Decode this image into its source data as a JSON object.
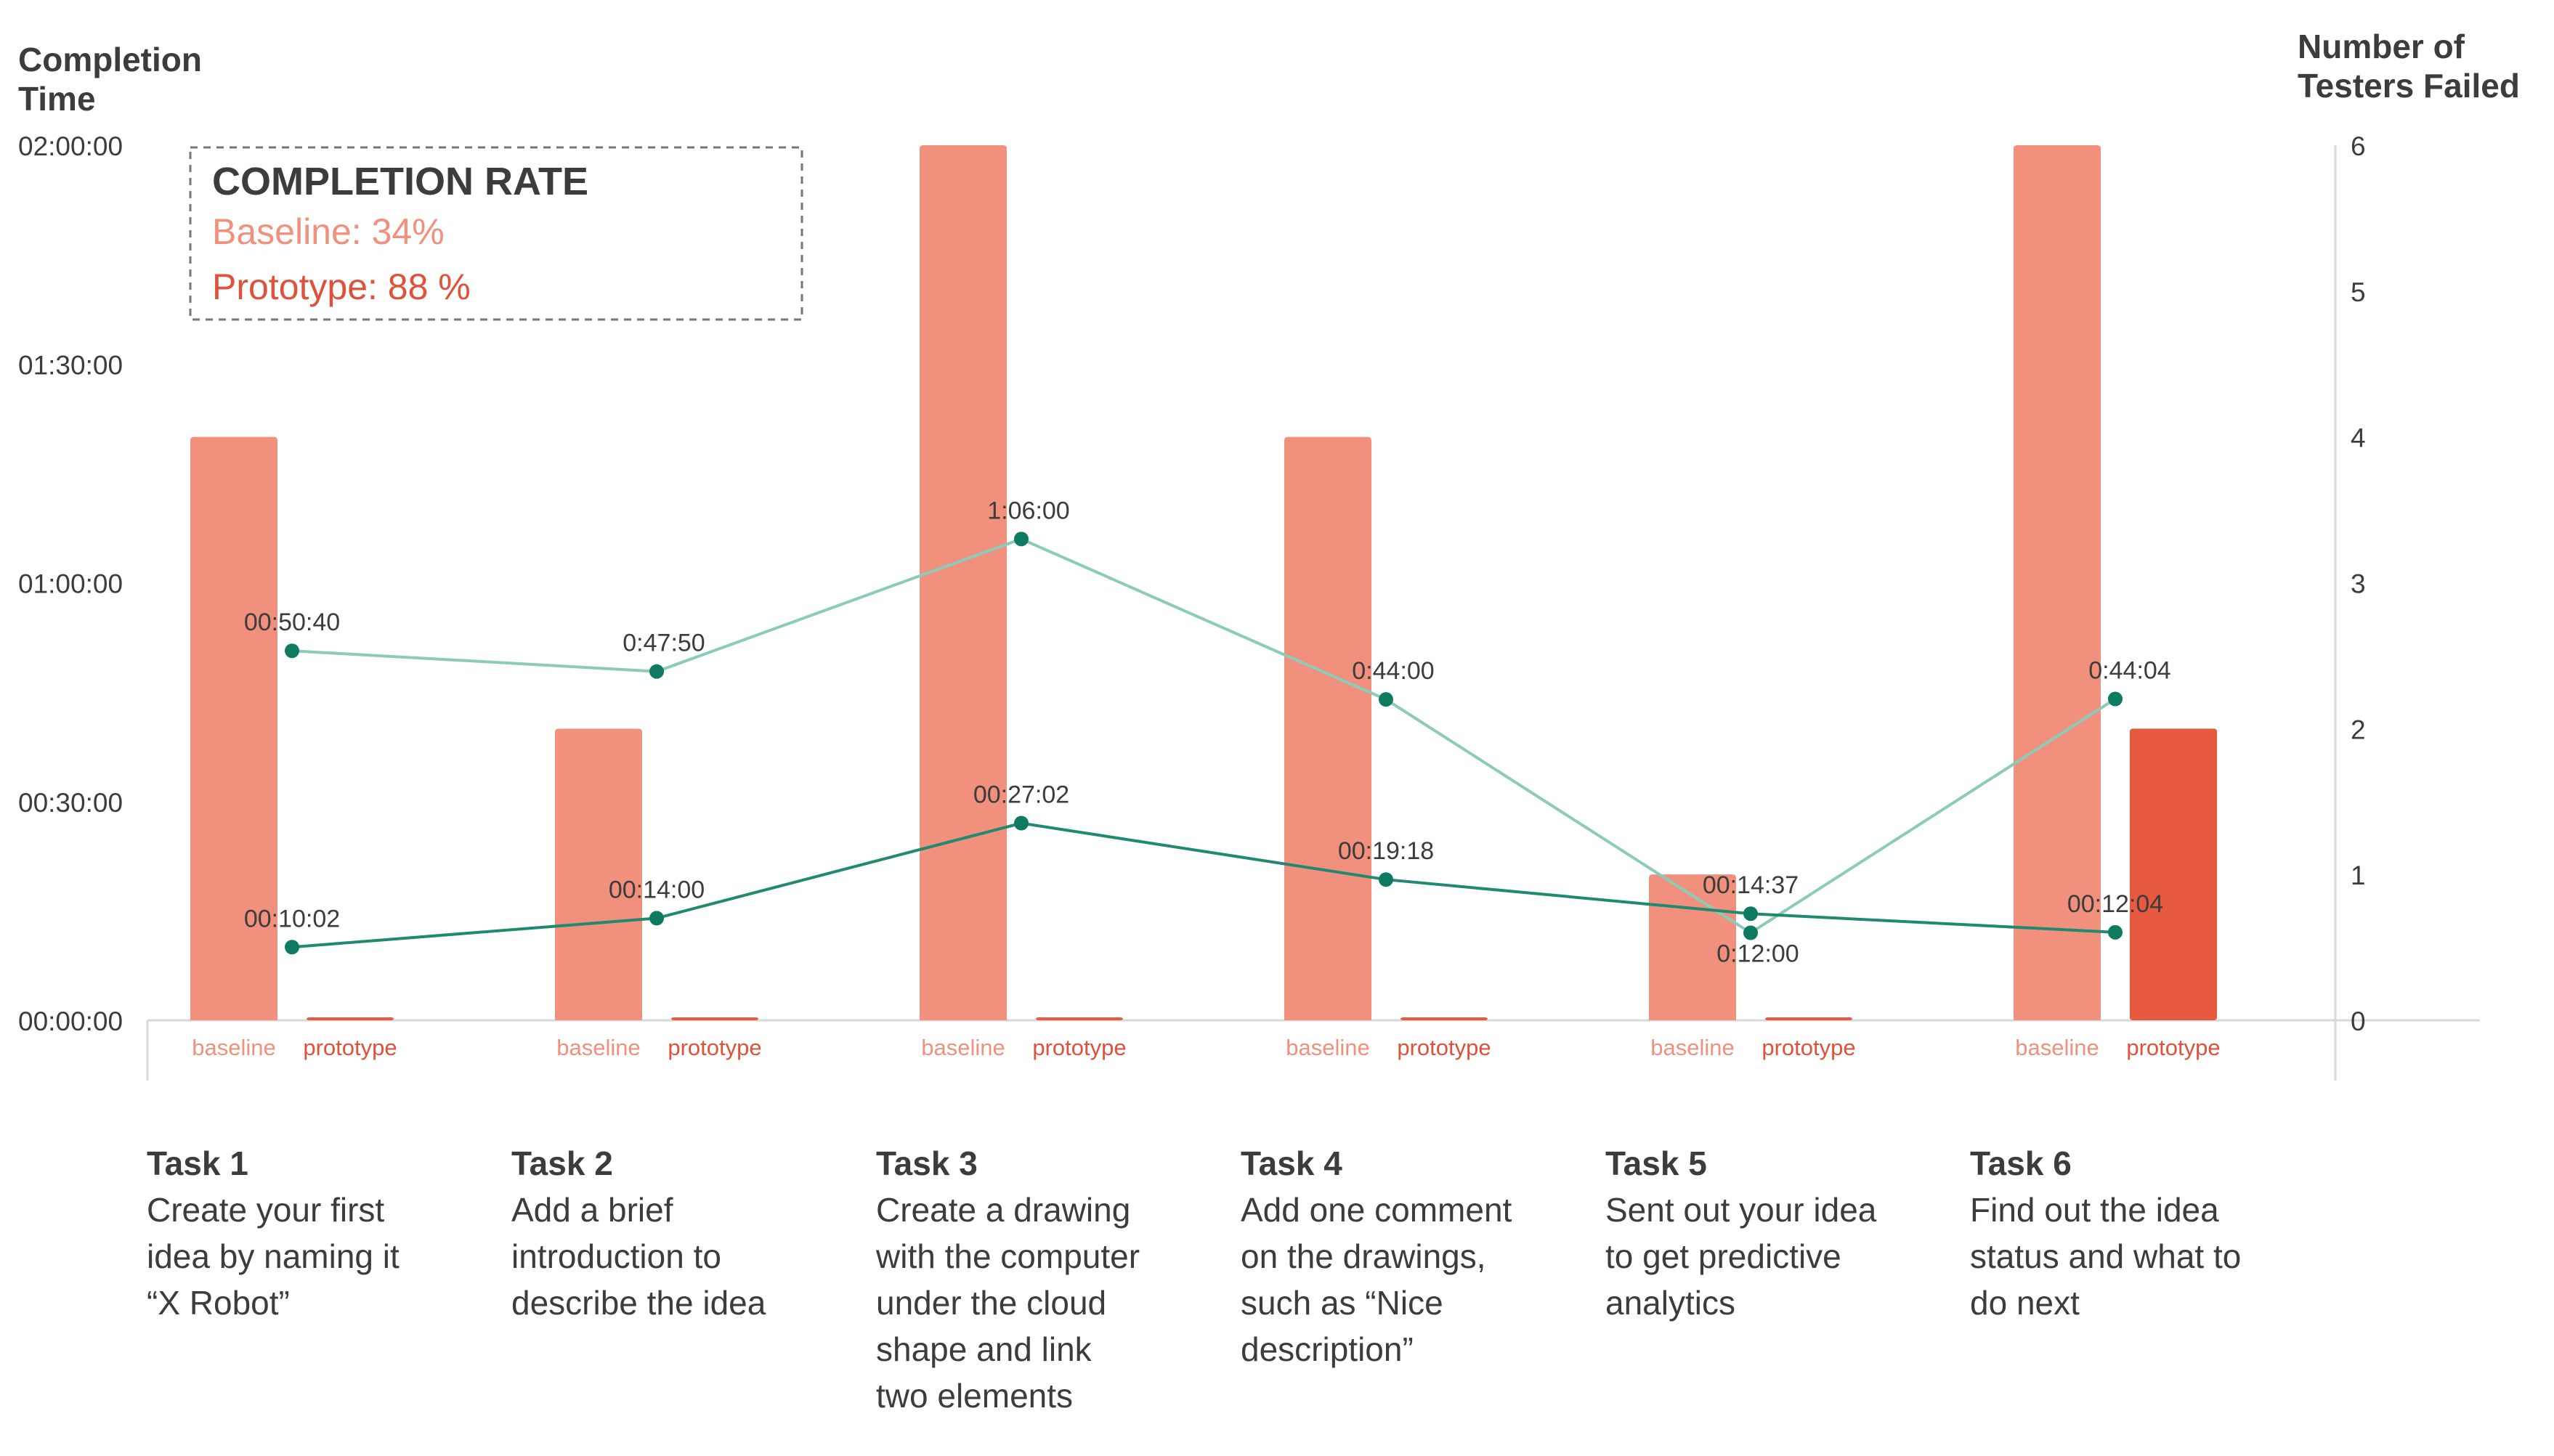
{
  "colors": {
    "baseline_bar": "#f0907d",
    "prototype_bar": "#e85a40",
    "baseline_text": "#f0907d",
    "prototype_text": "#e0513a",
    "line_baseline": "#8ccbb9",
    "line_prototype": "#1f8a6f",
    "dot": "#0e7a60",
    "text_dark": "#3c3c3c",
    "axis": "#d9d9d9"
  },
  "chart_data": {
    "type": "bar",
    "title": "",
    "y_left_label": [
      "Completion",
      "Time"
    ],
    "y_right_label": [
      "Number of",
      "Testers Failed"
    ],
    "y_left_ticks": [
      "00:00:00",
      "00:30:00",
      "01:00:00",
      "01:30:00",
      "02:00:00"
    ],
    "y_left_tick_values": [
      0,
      1,
      2,
      3,
      4
    ],
    "y_right_ticks": [
      "0",
      "1",
      "2",
      "3",
      "4",
      "5",
      "6"
    ],
    "y_right_tick_values": [
      0,
      1,
      2,
      3,
      4,
      5,
      6
    ],
    "ylim_right": [
      0,
      6
    ],
    "ylim_left_minutes": [
      0,
      120
    ],
    "categories": [
      "Task 1",
      "Task 2",
      "Task 3",
      "Task 4",
      "Task 5",
      "Task 6"
    ],
    "bar_group_labels": [
      "baseline",
      "prototype"
    ],
    "bar_series": [
      {
        "name": "baseline",
        "values": [
          4,
          2,
          6,
          4,
          1,
          6
        ]
      },
      {
        "name": "prototype",
        "values": [
          0,
          0,
          0,
          0,
          0,
          2
        ]
      }
    ],
    "line_series": [
      {
        "name": "baseline",
        "values_minutes": [
          50.667,
          47.833,
          66.0,
          44.0,
          12.0,
          44.067
        ],
        "labels": [
          "00:50:40",
          "0:47:50",
          "1:06:00",
          "0:44:00",
          "0:12:00",
          "0:44:04"
        ]
      },
      {
        "name": "prototype",
        "values_minutes": [
          10.033,
          14.0,
          27.033,
          19.3,
          14.617,
          12.067
        ],
        "labels": [
          "00:10:02",
          "00:14:00",
          "00:27:02",
          "00:19:18",
          "00:14:37",
          "00:12:04"
        ]
      }
    ],
    "task_descriptions": [
      {
        "title": "Task 1",
        "lines": [
          "Create your first",
          "idea by naming it",
          "“X Robot”"
        ]
      },
      {
        "title": "Task 2",
        "lines": [
          "Add a brief",
          "introduction to",
          "describe the idea"
        ]
      },
      {
        "title": "Task 3",
        "lines": [
          "Create a drawing",
          "with the computer",
          "under the cloud",
          "shape and link",
          "two elements"
        ]
      },
      {
        "title": "Task 4",
        "lines": [
          "Add one comment",
          "on the drawings,",
          "such as “Nice",
          "description”"
        ]
      },
      {
        "title": "Task 5",
        "lines": [
          "Sent out your idea",
          "to get predictive",
          "analytics"
        ]
      },
      {
        "title": "Task 6",
        "lines": [
          "Find out the idea",
          "status and what to",
          "do next"
        ]
      }
    ],
    "completion_rate": {
      "heading": "COMPLETION RATE",
      "baseline": "Baseline: 34%",
      "prototype": "Prototype: 88 %"
    },
    "legend": "top-left",
    "grid": false
  }
}
